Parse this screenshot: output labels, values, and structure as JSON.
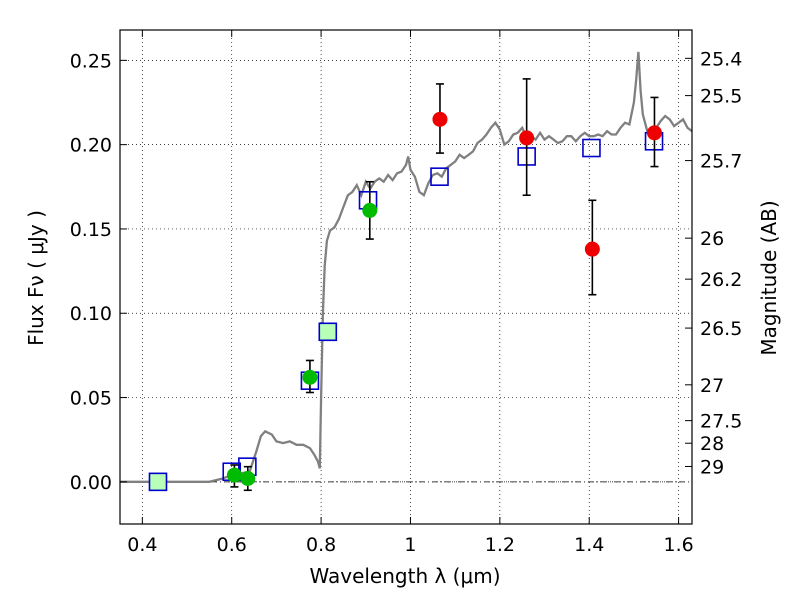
{
  "chart_data": {
    "type": "scatter",
    "xlabel": "Wavelength  λ (μm)",
    "ylabel_left": "Flux  Fν  ( μJy )",
    "ylabel_right": "Magnitude (AB)",
    "xlim": [
      0.35,
      1.63
    ],
    "ylim": [
      -0.025,
      0.268
    ],
    "x_ticks": [
      {
        "v": 0.4,
        "label": "0.4"
      },
      {
        "v": 0.6,
        "label": "0.6"
      },
      {
        "v": 0.8,
        "label": "0.8"
      },
      {
        "v": 1.0,
        "label": "1"
      },
      {
        "v": 1.2,
        "label": "1.2"
      },
      {
        "v": 1.4,
        "label": "1.4"
      },
      {
        "v": 1.6,
        "label": "1.6"
      }
    ],
    "y_ticks": [
      {
        "v": 0.0,
        "label": "0.00"
      },
      {
        "v": 0.05,
        "label": "0.05"
      },
      {
        "v": 0.1,
        "label": "0.10"
      },
      {
        "v": 0.15,
        "label": "0.15"
      },
      {
        "v": 0.2,
        "label": "0.20"
      },
      {
        "v": 0.25,
        "label": "0.25"
      }
    ],
    "mag_ticks": [
      {
        "mag": 25.4,
        "label": "25.4"
      },
      {
        "mag": 25.5,
        "label": "25.5"
      },
      {
        "mag": 25.7,
        "label": "25.7"
      },
      {
        "mag": 26.0,
        "label": "26"
      },
      {
        "mag": 26.2,
        "label": "26.2"
      },
      {
        "mag": 26.5,
        "label": "26.5"
      },
      {
        "mag": 27.0,
        "label": "27"
      },
      {
        "mag": 27.5,
        "label": "27.5"
      },
      {
        "mag": 28.0,
        "label": "28"
      },
      {
        "mag": 29.0,
        "label": "29"
      }
    ],
    "grid": true,
    "zero_line": true,
    "colors": {
      "spectrum": "#808080",
      "model_squares": "#0000cc",
      "green_points": "#00bb00",
      "red_points": "#ee0000",
      "errorbar": "#000000",
      "highlight_square_fill": "#b8ffb8"
    },
    "spectrum": [
      [
        0.35,
        0.0
      ],
      [
        0.55,
        0.0
      ],
      [
        0.58,
        0.002
      ],
      [
        0.6,
        0.004
      ],
      [
        0.62,
        0.005
      ],
      [
        0.64,
        0.006
      ],
      [
        0.655,
        0.018
      ],
      [
        0.665,
        0.027
      ],
      [
        0.675,
        0.03
      ],
      [
        0.69,
        0.028
      ],
      [
        0.7,
        0.024
      ],
      [
        0.715,
        0.023
      ],
      [
        0.73,
        0.024
      ],
      [
        0.745,
        0.022
      ],
      [
        0.76,
        0.022
      ],
      [
        0.775,
        0.02
      ],
      [
        0.785,
        0.016
      ],
      [
        0.793,
        0.012
      ],
      [
        0.797,
        0.008
      ],
      [
        0.8,
        0.05
      ],
      [
        0.804,
        0.1
      ],
      [
        0.808,
        0.128
      ],
      [
        0.813,
        0.143
      ],
      [
        0.82,
        0.149
      ],
      [
        0.83,
        0.151
      ],
      [
        0.84,
        0.156
      ],
      [
        0.85,
        0.163
      ],
      [
        0.86,
        0.17
      ],
      [
        0.87,
        0.172
      ],
      [
        0.88,
        0.176
      ],
      [
        0.89,
        0.17
      ],
      [
        0.9,
        0.178
      ],
      [
        0.91,
        0.174
      ],
      [
        0.92,
        0.178
      ],
      [
        0.93,
        0.18
      ],
      [
        0.94,
        0.178
      ],
      [
        0.95,
        0.182
      ],
      [
        0.96,
        0.179
      ],
      [
        0.97,
        0.183
      ],
      [
        0.98,
        0.184
      ],
      [
        0.99,
        0.188
      ],
      [
        0.995,
        0.193
      ],
      [
        1.0,
        0.185
      ],
      [
        1.01,
        0.181
      ],
      [
        1.02,
        0.172
      ],
      [
        1.03,
        0.17
      ],
      [
        1.04,
        0.177
      ],
      [
        1.05,
        0.182
      ],
      [
        1.06,
        0.183
      ],
      [
        1.07,
        0.181
      ],
      [
        1.08,
        0.186
      ],
      [
        1.09,
        0.188
      ],
      [
        1.1,
        0.19
      ],
      [
        1.11,
        0.194
      ],
      [
        1.12,
        0.192
      ],
      [
        1.13,
        0.194
      ],
      [
        1.14,
        0.196
      ],
      [
        1.15,
        0.201
      ],
      [
        1.16,
        0.203
      ],
      [
        1.17,
        0.206
      ],
      [
        1.18,
        0.21
      ],
      [
        1.19,
        0.213
      ],
      [
        1.2,
        0.209
      ],
      [
        1.21,
        0.2
      ],
      [
        1.22,
        0.202
      ],
      [
        1.23,
        0.206
      ],
      [
        1.24,
        0.207
      ],
      [
        1.25,
        0.21
      ],
      [
        1.26,
        0.204
      ],
      [
        1.27,
        0.205
      ],
      [
        1.28,
        0.203
      ],
      [
        1.29,
        0.207
      ],
      [
        1.3,
        0.203
      ],
      [
        1.31,
        0.205
      ],
      [
        1.32,
        0.203
      ],
      [
        1.33,
        0.201
      ],
      [
        1.34,
        0.202
      ],
      [
        1.35,
        0.205
      ],
      [
        1.36,
        0.205
      ],
      [
        1.37,
        0.202
      ],
      [
        1.38,
        0.205
      ],
      [
        1.39,
        0.207
      ],
      [
        1.4,
        0.205
      ],
      [
        1.41,
        0.205
      ],
      [
        1.42,
        0.206
      ],
      [
        1.43,
        0.205
      ],
      [
        1.44,
        0.208
      ],
      [
        1.45,
        0.206
      ],
      [
        1.46,
        0.206
      ],
      [
        1.47,
        0.21
      ],
      [
        1.48,
        0.213
      ],
      [
        1.49,
        0.212
      ],
      [
        1.5,
        0.225
      ],
      [
        1.505,
        0.238
      ],
      [
        1.51,
        0.255
      ],
      [
        1.515,
        0.232
      ],
      [
        1.52,
        0.218
      ],
      [
        1.53,
        0.208
      ],
      [
        1.54,
        0.205
      ],
      [
        1.55,
        0.21
      ],
      [
        1.56,
        0.214
      ],
      [
        1.57,
        0.217
      ],
      [
        1.58,
        0.215
      ],
      [
        1.59,
        0.211
      ],
      [
        1.6,
        0.213
      ],
      [
        1.61,
        0.215
      ],
      [
        1.62,
        0.21
      ],
      [
        1.63,
        0.208
      ]
    ],
    "model_squares": [
      {
        "x": 0.435,
        "y": 0.0,
        "highlight": true
      },
      {
        "x": 0.6,
        "y": 0.006,
        "highlight": false
      },
      {
        "x": 0.635,
        "y": 0.009,
        "highlight": false
      },
      {
        "x": 0.775,
        "y": 0.06,
        "highlight": false
      },
      {
        "x": 0.815,
        "y": 0.089,
        "highlight": true
      },
      {
        "x": 0.905,
        "y": 0.167,
        "highlight": false
      },
      {
        "x": 1.065,
        "y": 0.181,
        "highlight": false
      },
      {
        "x": 1.26,
        "y": 0.193,
        "highlight": false
      },
      {
        "x": 1.405,
        "y": 0.198,
        "highlight": false
      },
      {
        "x": 1.545,
        "y": 0.202,
        "highlight": false
      }
    ],
    "green_points": [
      {
        "x": 0.606,
        "y": 0.004,
        "err_low": 0.007,
        "err_high": 0.006
      },
      {
        "x": 0.636,
        "y": 0.002,
        "err_low": 0.007,
        "err_high": 0.007
      },
      {
        "x": 0.775,
        "y": 0.062,
        "err_low": 0.009,
        "err_high": 0.01
      },
      {
        "x": 0.909,
        "y": 0.161,
        "err_low": 0.017,
        "err_high": 0.017
      }
    ],
    "red_points": [
      {
        "x": 1.066,
        "y": 0.215,
        "err_low": 0.02,
        "err_high": 0.021
      },
      {
        "x": 1.26,
        "y": 0.204,
        "err_low": 0.034,
        "err_high": 0.035
      },
      {
        "x": 1.407,
        "y": 0.138,
        "err_low": 0.027,
        "err_high": 0.029
      },
      {
        "x": 1.546,
        "y": 0.207,
        "err_low": 0.02,
        "err_high": 0.021
      }
    ]
  }
}
